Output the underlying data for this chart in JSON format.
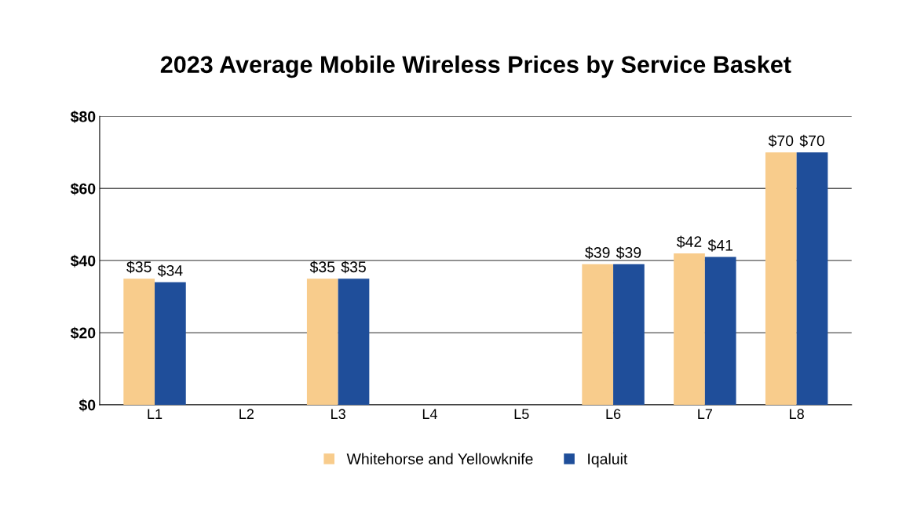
{
  "chart_data": {
    "type": "bar",
    "title": "2023 Average Mobile Wireless Prices by Service Basket",
    "categories": [
      "L1",
      "L2",
      "L3",
      "L4",
      "L5",
      "L6",
      "L7",
      "L8"
    ],
    "series": [
      {
        "name": "Whitehorse and Yellowknife",
        "color": "#f8cc8c",
        "values": [
          35,
          0,
          35,
          0,
          0,
          39,
          42,
          70
        ],
        "value_labels": [
          "$35",
          null,
          "$35",
          null,
          null,
          "$39",
          "$42",
          "$70"
        ]
      },
      {
        "name": "Iqaluit",
        "color": "#1f4e9a",
        "values": [
          34,
          0,
          35,
          0,
          0,
          39,
          41,
          70
        ],
        "value_labels": [
          "$34",
          null,
          "$35",
          null,
          null,
          "$39",
          "$41",
          "$70"
        ]
      }
    ],
    "ylim": [
      0,
      80
    ],
    "yticks": [
      {
        "value": 0,
        "label": "$0"
      },
      {
        "value": 20,
        "label": "$20"
      },
      {
        "value": 40,
        "label": "$40"
      },
      {
        "value": 60,
        "label": "$60"
      },
      {
        "value": 80,
        "label": "$80"
      }
    ],
    "grid": "y",
    "legend": "bottom"
  }
}
